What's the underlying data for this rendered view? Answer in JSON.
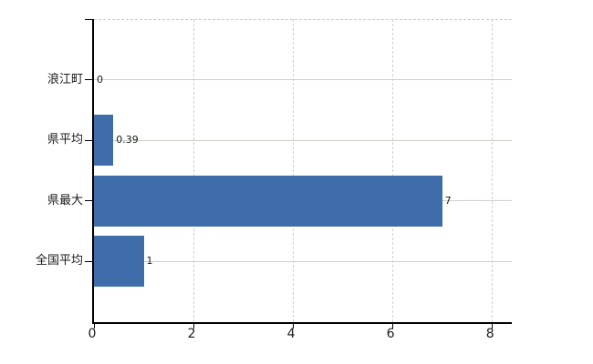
{
  "chart_data": {
    "type": "bar",
    "orientation": "horizontal",
    "title": "",
    "xlabel": "",
    "ylabel": "",
    "categories": [
      "浪江町",
      "県平均",
      "県最大",
      "全国平均"
    ],
    "values": [
      0,
      0.39,
      7,
      1
    ],
    "value_labels": [
      "0",
      "0.39",
      "7",
      "1"
    ],
    "x_tick_labels": [
      "0",
      "2",
      "4",
      "6",
      "8"
    ],
    "x_tick_values": [
      0,
      2,
      4,
      6,
      8
    ],
    "xlim": [
      0,
      8.4
    ],
    "grid": true,
    "legend_position": "none",
    "colors": {
      "bar": "#3e6daa",
      "h_gridline": "#ccd3cb",
      "v_gridline": "#d3cfd3",
      "top_border": "#c9c9c9",
      "axis": "#000000",
      "text": "#1a1a1a",
      "background": "#ffffff"
    }
  }
}
